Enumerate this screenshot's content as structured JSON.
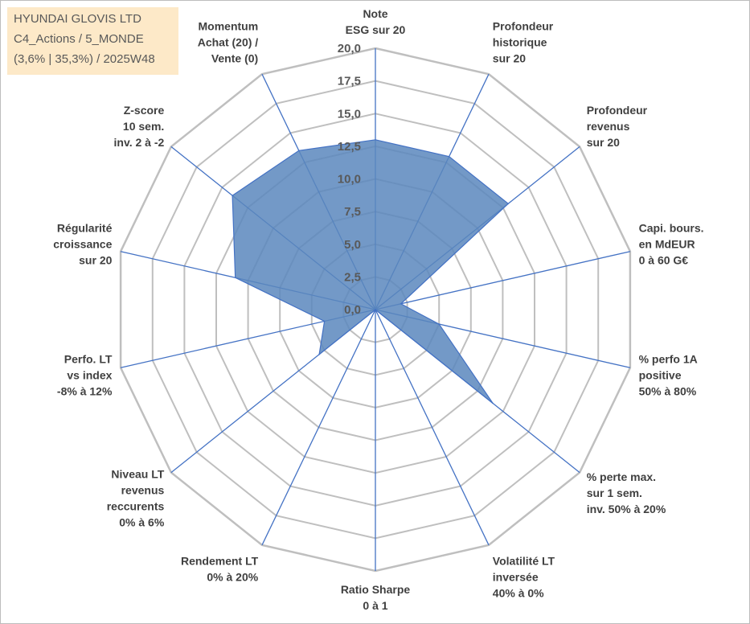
{
  "info_box": {
    "line1": "HYUNDAI GLOVIS LTD",
    "line2": "C4_Actions / 5_MONDE",
    "line3": "(3,6% | 35,3%) / 2025W48"
  },
  "colors": {
    "series_fill": "#5b87bd",
    "series_stroke": "#4472c4",
    "grid": "#bfbfbf",
    "spoke": "#4472c4",
    "info_box_bg": "#fde9c8"
  },
  "chart_data": {
    "type": "radar",
    "title": "",
    "rmin": 0,
    "rmax": 20,
    "grid": true,
    "tick_labels": [
      "0,0",
      "2,5",
      "5,0",
      "7,5",
      "10,0",
      "12,5",
      "15,0",
      "17,5",
      "20,0"
    ],
    "categories": [
      [
        "Note",
        "ESG sur 20"
      ],
      [
        "Profondeur",
        "historique",
        "sur 20"
      ],
      [
        "Profondeur",
        "revenus",
        "sur 20"
      ],
      [
        "Capi. bours.",
        "en MdEUR",
        "0 à 60 G€"
      ],
      [
        "% perfo 1A",
        "positive",
        "50% à 80%"
      ],
      [
        "% perte max.",
        "sur 1 sem.",
        "inv. 50% à 20%"
      ],
      [
        "Volatilité LT",
        "inversée",
        "40% à 0%"
      ],
      [
        "Ratio Sharpe",
        "0 à 1"
      ],
      [
        "Rendement LT",
        "0% à 20%"
      ],
      [
        "Niveau LT",
        "revenus",
        "reccurents",
        "0% à 6%"
      ],
      [
        "Perfo. LT",
        "vs index",
        "-8% à 12%"
      ],
      [
        "Régularité",
        "croissance",
        "sur 20"
      ],
      [
        "Z-score",
        "10 sem.",
        "inv. 2 à -2"
      ],
      [
        "Momentum",
        "Achat (20) /",
        "Vente (0)"
      ]
    ],
    "series": [
      {
        "values": [
          13,
          13,
          13,
          2,
          5,
          11.5,
          0,
          0,
          0,
          5.5,
          4,
          11,
          14,
          13.5
        ]
      }
    ]
  }
}
